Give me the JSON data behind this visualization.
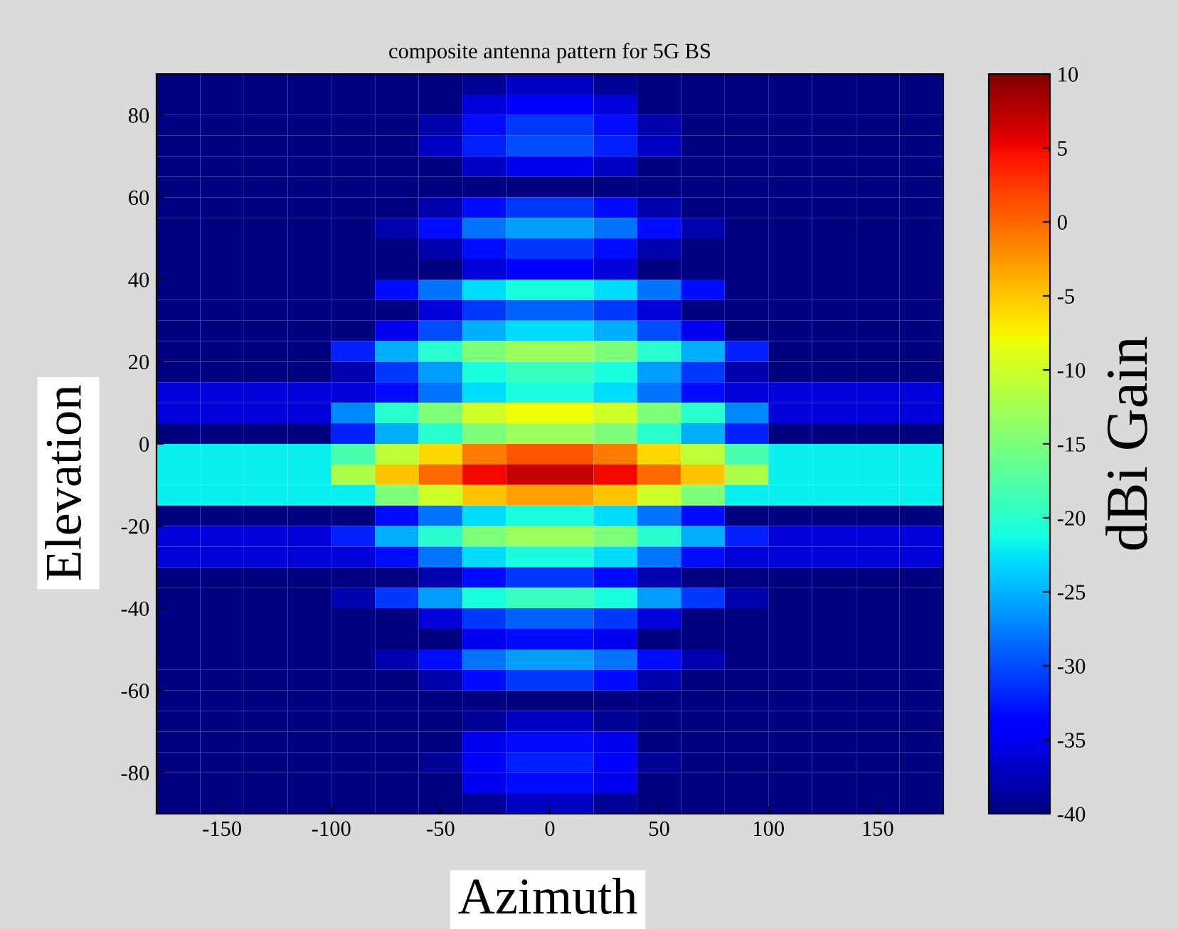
{
  "chart_data": {
    "type": "heatmap",
    "title": "composite antenna pattern for 5G BS",
    "xlabel": "Azimuth",
    "ylabel": "Elevation",
    "clabel": "dBi Gain",
    "x": [
      -170,
      -150,
      -130,
      -110,
      -90,
      -70,
      -50,
      -30,
      -10,
      10,
      30,
      50,
      70,
      90,
      110,
      130,
      150,
      170
    ],
    "y": [
      87.5,
      82.5,
      77.5,
      72.5,
      67.5,
      62.5,
      57.5,
      52.5,
      47.5,
      42.5,
      37.5,
      32.5,
      27.5,
      22.5,
      17.5,
      12.5,
      7.5,
      2.5,
      -2.5,
      -7.5,
      -12.5,
      -17.5,
      -22.5,
      -27.5,
      -32.5,
      -37.5,
      -42.5,
      -47.5,
      -52.5,
      -57.5,
      -62.5,
      -67.5,
      -72.5,
      -77.5,
      -82.5,
      -87.5
    ],
    "cells": [
      [
        -40,
        -40,
        -40,
        -40,
        -40,
        -40,
        -40,
        -39,
        -37,
        -37,
        -39,
        -40,
        -40,
        -40,
        -40,
        -40,
        -40,
        -40
      ],
      [
        -40,
        -40,
        -40,
        -40,
        -40,
        -40,
        -40,
        -36,
        -34,
        -34,
        -36,
        -40,
        -40,
        -40,
        -40,
        -40,
        -40,
        -40
      ],
      [
        -40,
        -40,
        -40,
        -40,
        -40,
        -40,
        -38,
        -33,
        -31,
        -31,
        -33,
        -38,
        -40,
        -40,
        -40,
        -40,
        -40,
        -40
      ],
      [
        -40,
        -40,
        -40,
        -40,
        -40,
        -40,
        -37,
        -32,
        -30,
        -30,
        -32,
        -37,
        -40,
        -40,
        -40,
        -40,
        -40,
        -40
      ],
      [
        -40,
        -40,
        -40,
        -40,
        -40,
        -40,
        -40,
        -37,
        -35,
        -35,
        -37,
        -40,
        -40,
        -40,
        -40,
        -40,
        -40,
        -40
      ],
      [
        -40,
        -40,
        -40,
        -40,
        -40,
        -40,
        -40,
        -40,
        -40,
        -40,
        -40,
        -40,
        -40,
        -40,
        -40,
        -40,
        -40,
        -40
      ],
      [
        -40,
        -40,
        -40,
        -40,
        -40,
        -40,
        -38,
        -33,
        -31,
        -31,
        -33,
        -38,
        -40,
        -40,
        -40,
        -40,
        -40,
        -40
      ],
      [
        -40,
        -40,
        -40,
        -40,
        -40,
        -38,
        -33,
        -28,
        -26,
        -26,
        -28,
        -33,
        -38,
        -40,
        -40,
        -40,
        -40,
        -40
      ],
      [
        -40,
        -40,
        -40,
        -40,
        -40,
        -40,
        -38,
        -33,
        -31,
        -31,
        -33,
        -38,
        -40,
        -40,
        -40,
        -40,
        -40,
        -40
      ],
      [
        -40,
        -40,
        -40,
        -40,
        -40,
        -40,
        -40,
        -36,
        -34,
        -34,
        -36,
        -40,
        -40,
        -40,
        -40,
        -40,
        -40,
        -40
      ],
      [
        -40,
        -40,
        -40,
        -40,
        -40,
        -33,
        -28,
        -23,
        -21,
        -21,
        -23,
        -28,
        -33,
        -40,
        -40,
        -40,
        -40,
        -40
      ],
      [
        -40,
        -40,
        -40,
        -40,
        -40,
        -40,
        -36,
        -31,
        -29,
        -29,
        -31,
        -36,
        -40,
        -40,
        -40,
        -40,
        -40,
        -40
      ],
      [
        -40,
        -40,
        -40,
        -40,
        -40,
        -35,
        -30,
        -25,
        -23,
        -23,
        -25,
        -30,
        -35,
        -40,
        -40,
        -40,
        -40,
        -40
      ],
      [
        -40,
        -40,
        -40,
        -40,
        -32,
        -25,
        -20,
        -15,
        -13,
        -13,
        -15,
        -20,
        -25,
        -32,
        -40,
        -40,
        -40,
        -40
      ],
      [
        -40,
        -40,
        -40,
        -40,
        -38,
        -31,
        -26,
        -21,
        -19,
        -19,
        -21,
        -26,
        -31,
        -38,
        -40,
        -40,
        -40,
        -40
      ],
      [
        -36,
        -36,
        -36,
        -36,
        -36,
        -33,
        -28,
        -23,
        -21,
        -21,
        -23,
        -28,
        -33,
        -36,
        -36,
        -36,
        -36,
        -36
      ],
      [
        -36,
        -36,
        -36,
        -36,
        -27,
        -20,
        -15,
        -10,
        -8,
        -8,
        -10,
        -15,
        -20,
        -27,
        -36,
        -36,
        -36,
        -36
      ],
      [
        -40,
        -40,
        -40,
        -40,
        -32,
        -25,
        -20,
        -15,
        -13,
        -13,
        -15,
        -20,
        -25,
        -32,
        -40,
        -40,
        -40,
        -40
      ],
      [
        -22,
        -22,
        -22,
        -22,
        -18,
        -11,
        -6,
        -1,
        1,
        1,
        -1,
        -6,
        -11,
        -18,
        -22,
        -22,
        -22,
        -22
      ],
      [
        -22,
        -22,
        -22,
        -22,
        -12,
        -5,
        0,
        5,
        7,
        7,
        5,
        0,
        -5,
        -12,
        -22,
        -22,
        -22,
        -22
      ],
      [
        -22,
        -22,
        -22,
        -22,
        -22,
        -15,
        -10,
        -5,
        -3,
        -3,
        -5,
        -10,
        -15,
        -22,
        -22,
        -22,
        -22,
        -22
      ],
      [
        -40,
        -40,
        -40,
        -40,
        -40,
        -33,
        -28,
        -23,
        -21,
        -21,
        -23,
        -28,
        -33,
        -40,
        -40,
        -40,
        -40,
        -40
      ],
      [
        -36,
        -36,
        -36,
        -36,
        -32,
        -25,
        -20,
        -15,
        -13,
        -13,
        -15,
        -20,
        -25,
        -32,
        -36,
        -36,
        -36,
        -36
      ],
      [
        -36,
        -36,
        -36,
        -36,
        -36,
        -33,
        -28,
        -23,
        -21,
        -21,
        -23,
        -28,
        -33,
        -36,
        -36,
        -36,
        -36,
        -36
      ],
      [
        -40,
        -40,
        -40,
        -40,
        -40,
        -40,
        -38,
        -33,
        -31,
        -31,
        -33,
        -38,
        -40,
        -40,
        -40,
        -40,
        -40,
        -40
      ],
      [
        -40,
        -40,
        -40,
        -40,
        -38,
        -31,
        -26,
        -21,
        -19,
        -19,
        -21,
        -26,
        -31,
        -38,
        -40,
        -40,
        -40,
        -40
      ],
      [
        -40,
        -40,
        -40,
        -40,
        -40,
        -40,
        -36,
        -31,
        -29,
        -29,
        -31,
        -36,
        -40,
        -40,
        -40,
        -40,
        -40,
        -40
      ],
      [
        -40,
        -40,
        -40,
        -40,
        -40,
        -40,
        -40,
        -35,
        -33,
        -33,
        -35,
        -40,
        -40,
        -40,
        -40,
        -40,
        -40,
        -40
      ],
      [
        -40,
        -40,
        -40,
        -40,
        -40,
        -38,
        -33,
        -28,
        -26,
        -26,
        -28,
        -33,
        -38,
        -40,
        -40,
        -40,
        -40,
        -40
      ],
      [
        -40,
        -40,
        -40,
        -40,
        -40,
        -40,
        -38,
        -33,
        -31,
        -31,
        -33,
        -38,
        -40,
        -40,
        -40,
        -40,
        -40,
        -40
      ],
      [
        -40,
        -40,
        -40,
        -40,
        -40,
        -40,
        -40,
        -40,
        -40,
        -40,
        -40,
        -40,
        -40,
        -40,
        -40,
        -40,
        -40,
        -40
      ],
      [
        -40,
        -40,
        -40,
        -40,
        -40,
        -40,
        -40,
        -39,
        -37,
        -37,
        -39,
        -40,
        -40,
        -40,
        -40,
        -40,
        -40,
        -40
      ],
      [
        -40,
        -40,
        -40,
        -40,
        -40,
        -40,
        -40,
        -35,
        -33,
        -33,
        -35,
        -40,
        -40,
        -40,
        -40,
        -40,
        -40,
        -40
      ],
      [
        -40,
        -40,
        -40,
        -40,
        -40,
        -40,
        -39,
        -34,
        -32,
        -32,
        -34,
        -39,
        -40,
        -40,
        -40,
        -40,
        -40,
        -40
      ],
      [
        -40,
        -40,
        -40,
        -40,
        -40,
        -40,
        -40,
        -35,
        -33,
        -33,
        -35,
        -40,
        -40,
        -40,
        -40,
        -40,
        -40,
        -40
      ],
      [
        -40,
        -40,
        -40,
        -40,
        -40,
        -40,
        -40,
        -39,
        -37,
        -37,
        -39,
        -40,
        -40,
        -40,
        -40,
        -40,
        -40,
        -40
      ]
    ],
    "xlim": [
      -180,
      180
    ],
    "xticks": [
      -150,
      -100,
      -50,
      0,
      50,
      100,
      150
    ],
    "ylim": [
      -90,
      90
    ],
    "yticks": [
      -80,
      -60,
      -40,
      -20,
      0,
      20,
      40,
      60,
      80
    ],
    "clim": [
      -40,
      10
    ],
    "cticks": [
      -40,
      -35,
      -30,
      -25,
      -20,
      -15,
      -10,
      -5,
      0,
      5,
      10
    ],
    "grid": false
  }
}
